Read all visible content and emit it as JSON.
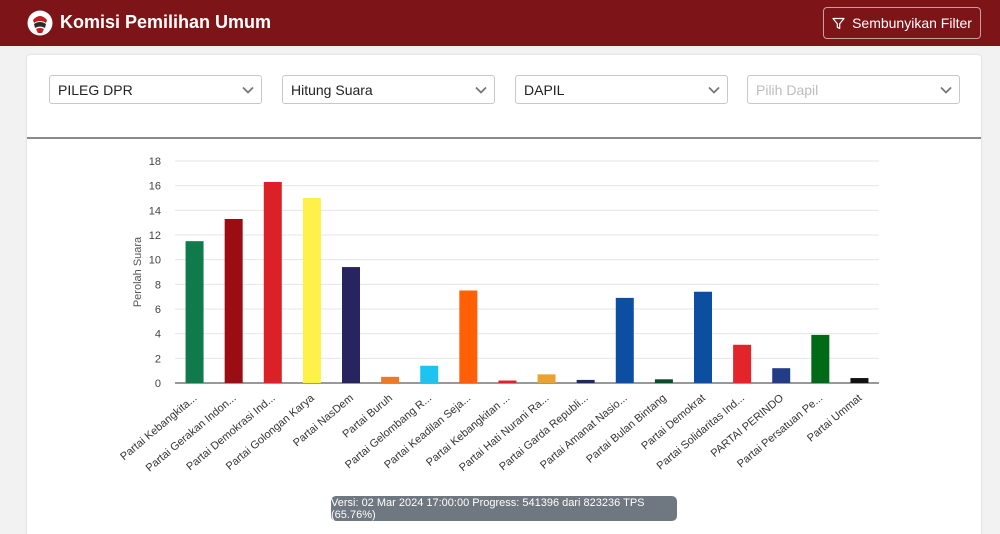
{
  "header": {
    "title": "Komisi Pemilihan Umum",
    "filter_button_label": "Sembunyikan Filter"
  },
  "filters": {
    "election": "PILEG DPR",
    "mode": "Hitung Suara",
    "region": "DAPIL",
    "dapil_placeholder": "Pilih Dapil"
  },
  "chart_data": {
    "type": "bar",
    "title": "",
    "ylabel": "Perolah Suara",
    "xlabel": "",
    "ylim": [
      0,
      18
    ],
    "yticks": [
      0,
      2,
      4,
      6,
      8,
      10,
      12,
      14,
      16,
      18
    ],
    "grid": true,
    "categories": [
      "Partai Kebangkita...",
      "Partai Gerakan Indon...",
      "Partai Demokrasi Ind...",
      "Partai Golongan Karya",
      "Partai NasDem",
      "Partai Buruh",
      "Partai Gelombang R...",
      "Partai Keadilan Seja...",
      "Partai Kebangkitan ...",
      "Partai Hati Nurani Ra...",
      "Partai Garda Republi...",
      "Partai Amanat Nasio...",
      "Partai Bulan Bintang",
      "Partai Demokrat",
      "Partai Solidaritas Ind...",
      "PARTAI PERINDO",
      "Partai Persatuan Pe...",
      "Partai Ummat"
    ],
    "values": [
      11.5,
      13.3,
      16.3,
      15.0,
      9.4,
      0.5,
      1.4,
      7.5,
      0.2,
      0.7,
      0.25,
      6.9,
      0.3,
      7.4,
      3.1,
      1.2,
      3.9,
      0.4
    ],
    "colors": [
      "#0f7a4c",
      "#9b0d12",
      "#dc2028",
      "#fff04a",
      "#28245f",
      "#f07a24",
      "#1cc5f1",
      "#ff5f05",
      "#d9242a",
      "#eca32d",
      "#1e2c5a",
      "#0b4ea2",
      "#0b4a2a",
      "#0b4ea2",
      "#e3242b",
      "#233c86",
      "#006a17",
      "#111111"
    ]
  },
  "status": {
    "version_text": "Versi: 02 Mar 2024 17:00:00 Progress: 541396 dari 823236 TPS (65.76%)"
  }
}
